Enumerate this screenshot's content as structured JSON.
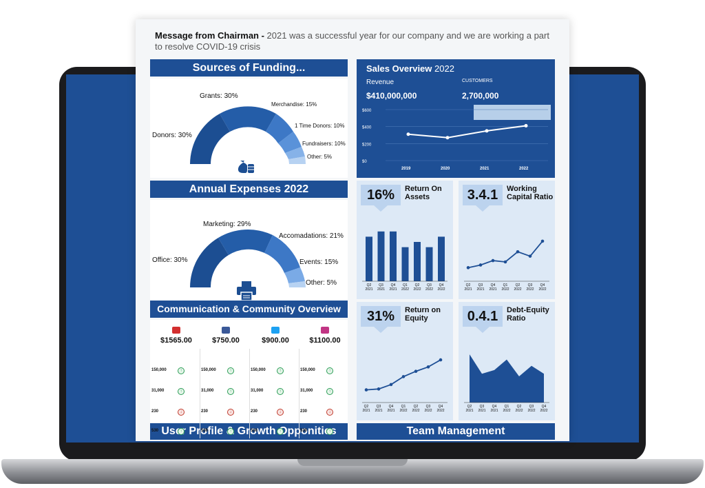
{
  "message": {
    "label": "Message from Chairman -",
    "text": " 2021 was a successful year for our company and we are working a part to resolve COVID-19 crisis"
  },
  "funding": {
    "title": "Sources of Funding...",
    "labels": [
      "Grants: 30%",
      "Merchandise: 15%",
      "1 Time Donors: 10%",
      "Fundraisers: 10%",
      "Other: 5%",
      "Donors: 30%"
    ],
    "icon": "money-bag-icon"
  },
  "expenses": {
    "title": "Annual Expenses 2022",
    "labels": [
      "Marketing: 29%",
      "Accomadations: 21%",
      "Events: 15%",
      "Other: 5%",
      "Office: 30%"
    ],
    "icon": "printer-icon"
  },
  "community": {
    "title": "Communication & Community Overview",
    "channels": [
      {
        "icon": "youtube-icon",
        "value": "$1565.00",
        "rows": [
          "150,000",
          "31,000",
          "230",
          "530"
        ]
      },
      {
        "icon": "facebook-icon",
        "value": "$750.00",
        "rows": [
          "150,000",
          "31,000",
          "230",
          "530"
        ]
      },
      {
        "icon": "twitter-icon",
        "value": "$900.00",
        "rows": [
          "150,000",
          "31,000",
          "230",
          "530"
        ]
      },
      {
        "icon": "instagram-icon",
        "value": "$1100.00",
        "rows": [
          "150,000",
          "31,000",
          "230",
          "530"
        ]
      }
    ]
  },
  "sales": {
    "title": "Sales Overview",
    "year": "2022",
    "revenue_label": "Revenue",
    "revenue_value": "$410,000,000",
    "customers_label": "CUSTOMERS",
    "customers_value": "2,700,000"
  },
  "kpis": {
    "roa": {
      "value": "16%",
      "title": "Return On Assets"
    },
    "wcr": {
      "value": "3.4.1",
      "title": "Working Capital Ratio"
    },
    "roe": {
      "value": "31%",
      "title": "Return on Equity"
    },
    "der": {
      "value": "0.4.1",
      "title": "Debt-Equity Ratio"
    }
  },
  "footer": {
    "user_profile": "User Profile & Growth Opponities",
    "team": "Team Management"
  },
  "chart_data": [
    {
      "type": "line",
      "title": "Sales Overview 2022",
      "categories": [
        "2019",
        "2020",
        "2021",
        "2022"
      ],
      "values": [
        310,
        270,
        350,
        410
      ],
      "yticks": [
        "$0",
        "$200",
        "$400",
        "$600"
      ],
      "ylim": [
        0,
        600
      ]
    },
    {
      "type": "bar",
      "title": "Return On Assets",
      "categories": [
        "Q2 2021",
        "Q3 2021",
        "Q4 2021",
        "Q1 2022",
        "Q2 2022",
        "Q3 2022",
        "Q4 2022"
      ],
      "values": [
        85,
        95,
        95,
        65,
        75,
        65,
        85
      ],
      "ylim": [
        0,
        100
      ]
    },
    {
      "type": "line",
      "title": "Working Capital Ratio",
      "categories": [
        "Q2 2021",
        "Q3 2021",
        "Q4 2021",
        "Q1 2022",
        "Q2 2022",
        "Q3 2022",
        "Q4 2022"
      ],
      "values": [
        12,
        18,
        28,
        25,
        48,
        38,
        72
      ],
      "ylim": [
        0,
        100
      ]
    },
    {
      "type": "line",
      "title": "Return on Equity",
      "categories": [
        "Q2 2021",
        "Q3 2021",
        "Q4 2021",
        "Q1 2022",
        "Q2 2022",
        "Q3 2022",
        "Q4 2022"
      ],
      "values": [
        10,
        12,
        22,
        40,
        52,
        62,
        78
      ],
      "ylim": [
        0,
        100
      ]
    },
    {
      "type": "area",
      "title": "Debt-Equity Ratio",
      "categories": [
        "Q2 2021",
        "Q3 2021",
        "Q4 2021",
        "Q1 2022",
        "Q2 2022",
        "Q3 2022",
        "Q4 2022"
      ],
      "values": [
        92,
        55,
        62,
        82,
        50,
        70,
        55
      ],
      "ylim": [
        0,
        100
      ]
    }
  ]
}
